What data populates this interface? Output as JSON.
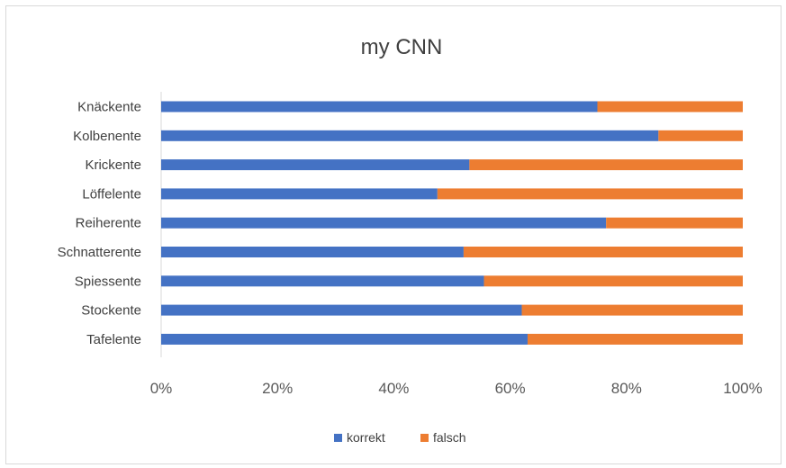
{
  "chart_data": {
    "type": "bar",
    "orientation": "horizontal",
    "stacking": "percent",
    "title": "my CNN",
    "xlabel": "",
    "ylabel": "",
    "xlim": [
      0,
      100
    ],
    "x_ticks": [
      "0%",
      "20%",
      "40%",
      "60%",
      "80%",
      "100%"
    ],
    "categories": [
      "Knäckente",
      "Kolbenente",
      "Krickente",
      "Löffelente",
      "Reiherente",
      "Schnatterente",
      "Spiessente",
      "Stockente",
      "Tafelente"
    ],
    "series": [
      {
        "name": "korrekt",
        "color": "#4472C4",
        "values": [
          75,
          85.5,
          53,
          47.5,
          76.5,
          52,
          55.5,
          62,
          63
        ]
      },
      {
        "name": "falsch",
        "color": "#ED7D31",
        "values": [
          25,
          14.5,
          47,
          52.5,
          23.5,
          48,
          44.5,
          38,
          37
        ]
      }
    ],
    "legend_position": "bottom",
    "grid": false
  }
}
